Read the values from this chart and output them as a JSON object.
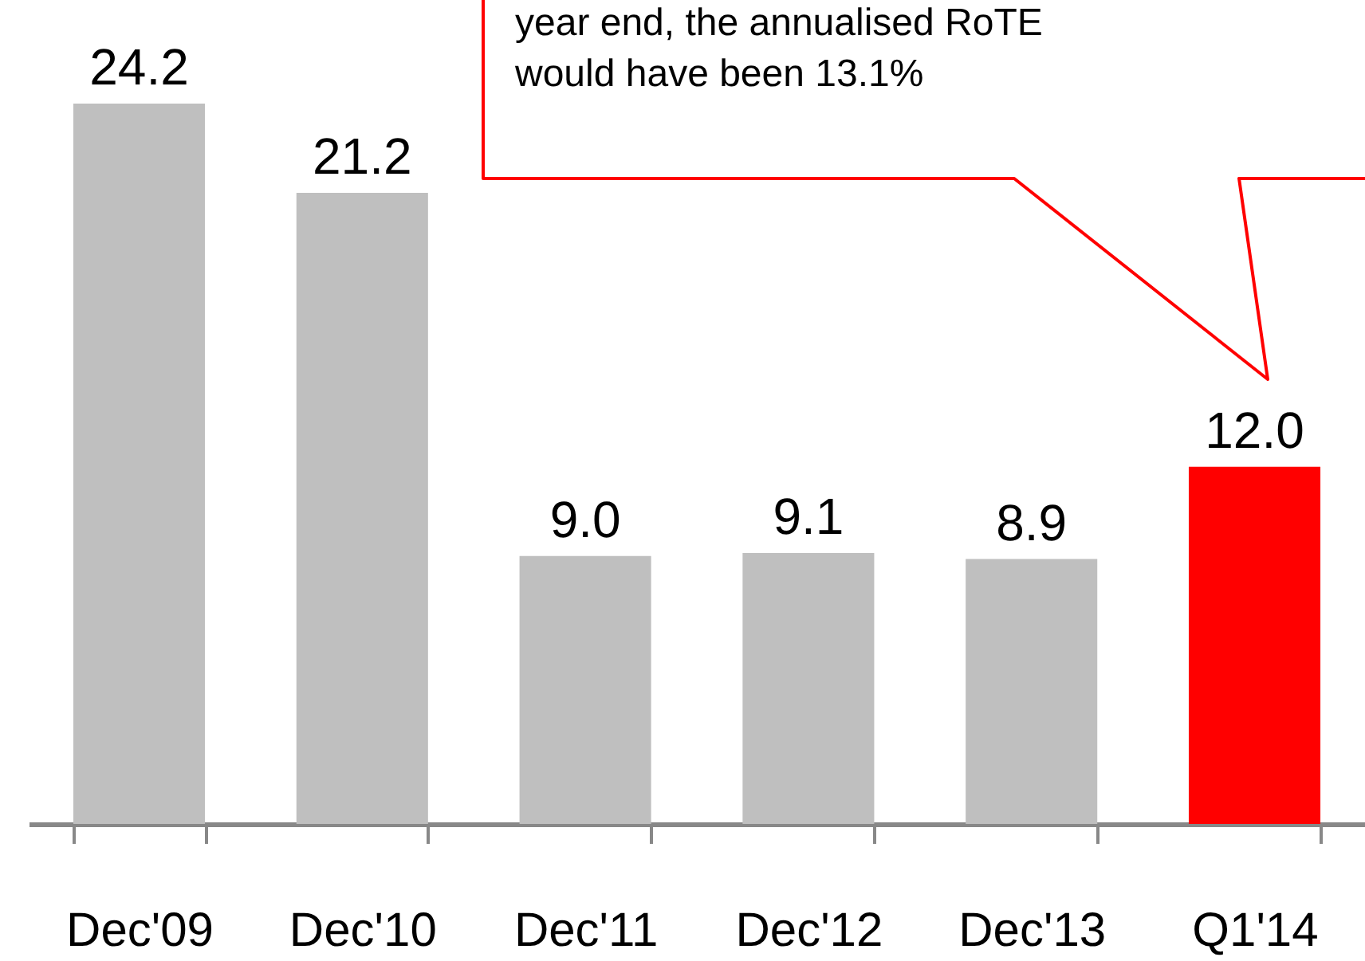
{
  "chart_data": {
    "type": "bar",
    "categories": [
      "Dec'09",
      "Dec'10",
      "Dec'11",
      "Dec'12",
      "Dec'13",
      "Q1'14"
    ],
    "values": [
      24.2,
      21.2,
      9.0,
      9.1,
      8.9,
      12.0
    ],
    "colors": [
      "#bfbfbf",
      "#bfbfbf",
      "#bfbfbf",
      "#bfbfbf",
      "#bfbfbf",
      "#ff0000"
    ],
    "value_labels": [
      "24.2",
      "21.2",
      "9.0",
      "9.1",
      "8.9",
      "12.0"
    ],
    "grid": false,
    "annotations": [
      "year end, the annualised RoTE\nwould have been 13.1%"
    ]
  }
}
